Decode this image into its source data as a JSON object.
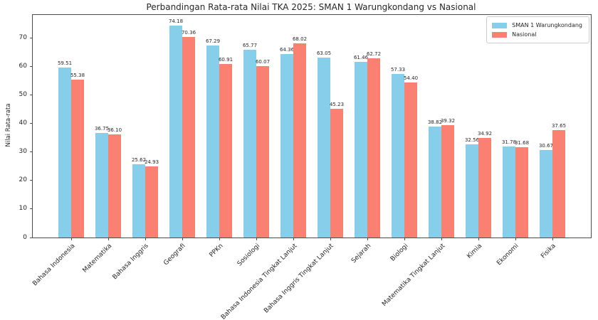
{
  "title": "Perbandingan Rata-rata Nilai TKA 2025: SMAN 1 Warungkondang vs Nasional",
  "chart_data": {
    "type": "bar",
    "title": "Perbandingan Rata-rata Nilai TKA 2025: SMAN 1 Warungkondang vs Nasional",
    "xlabel": "",
    "ylabel": "Nilai Rata-rata",
    "ylim": [
      0,
      78
    ],
    "yticks": [
      0,
      10,
      20,
      30,
      40,
      50,
      60,
      70
    ],
    "grid": false,
    "legend_position": "upper right",
    "bar_value_labels": true,
    "value_label_format": "2-decimals",
    "categories": [
      "Bahasa Indonesia",
      "Matematika",
      "Bahasa Inggris",
      "Geografi",
      "PPKn",
      "Sosiologi",
      "Bahasa Indonesia Tingkat Lanjut",
      "Bahasa Inggris Tingkat Lanjut",
      "Sejarah",
      "Biologi",
      "Matematika Tingkat Lanjut",
      "Kimia",
      "Ekonomi",
      "Fisika"
    ],
    "series": [
      {
        "name": "SMAN 1 Warungkondang",
        "color": "#87CEEB",
        "values": [
          59.51,
          36.75,
          25.62,
          74.18,
          67.29,
          65.77,
          64.36,
          63.05,
          61.46,
          57.33,
          38.82,
          32.56,
          31.78,
          30.67
        ]
      },
      {
        "name": "Nasional",
        "color": "#FA8072",
        "values": [
          55.38,
          36.1,
          24.93,
          70.36,
          60.91,
          60.07,
          68.02,
          45.23,
          62.72,
          54.4,
          39.32,
          34.92,
          31.68,
          37.65
        ]
      }
    ]
  }
}
